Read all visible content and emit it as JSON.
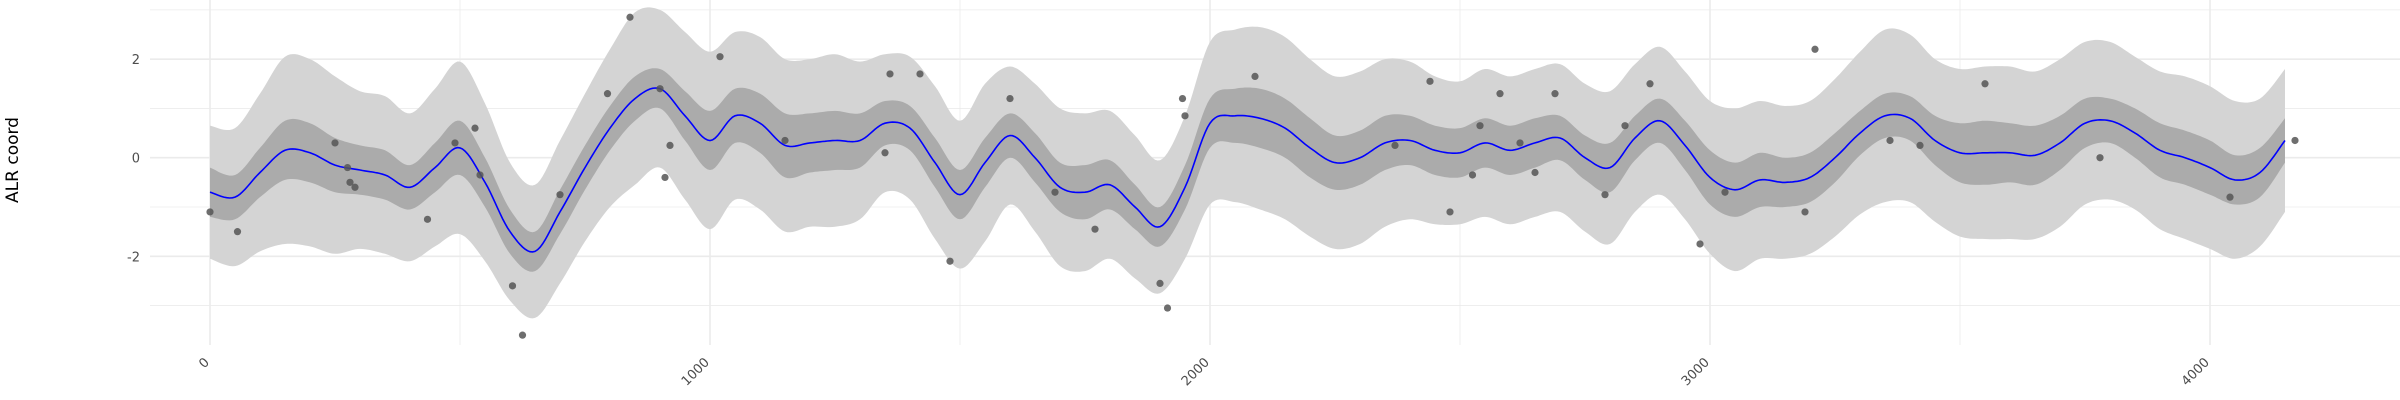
{
  "chart_data": {
    "type": "line",
    "title": "",
    "xlabel": "",
    "ylabel": "ALR coord",
    "xlim": [
      -120,
      4380
    ],
    "ylim": [
      -3.8,
      3.2
    ],
    "x_ticks": [
      0,
      1000,
      2000,
      3000,
      4000
    ],
    "x_tick_labels": [
      "0",
      "1000",
      "2000",
      "3000",
      "4000"
    ],
    "y_ticks": [
      -2,
      0,
      2
    ],
    "y_tick_labels": [
      "-2",
      "0",
      "2"
    ],
    "x_minor_ticks": [
      500,
      1500,
      2500,
      3500
    ],
    "y_minor_ticks": [
      -3,
      -1,
      1,
      3
    ],
    "grid": true,
    "legend": "none",
    "colors": {
      "mean_line": "#0000ff",
      "inner_band": "#ababab",
      "outer_band": "#d4d4d4",
      "points": "#555555",
      "grid": "#ebebeb"
    },
    "series": [
      {
        "kind": "mean",
        "x": [
          0,
          50,
          100,
          150,
          200,
          250,
          300,
          350,
          400,
          450,
          500,
          550,
          600,
          650,
          700,
          750,
          800,
          850,
          900,
          950,
          1000,
          1050,
          1100,
          1150,
          1200,
          1250,
          1300,
          1350,
          1400,
          1450,
          1500,
          1550,
          1600,
          1650,
          1700,
          1750,
          1800,
          1850,
          1900,
          1950,
          2000,
          2050,
          2100,
          2150,
          2200,
          2250,
          2300,
          2350,
          2400,
          2450,
          2500,
          2550,
          2600,
          2650,
          2700,
          2750,
          2800,
          2850,
          2900,
          2950,
          3000,
          3050,
          3100,
          3150,
          3200,
          3250,
          3300,
          3350,
          3400,
          3450,
          3500,
          3550,
          3600,
          3650,
          3700,
          3750,
          3800,
          3850,
          3900,
          3950,
          4000,
          4050,
          4100,
          4150
        ],
        "values": [
          -0.7,
          -0.8,
          -0.3,
          0.15,
          0.1,
          -0.15,
          -0.25,
          -0.35,
          -0.6,
          -0.2,
          0.2,
          -0.5,
          -1.5,
          -1.9,
          -1.1,
          -0.2,
          0.6,
          1.2,
          1.4,
          0.85,
          0.35,
          0.85,
          0.7,
          0.25,
          0.3,
          0.35,
          0.35,
          0.7,
          0.6,
          -0.1,
          -0.75,
          -0.1,
          0.45,
          0.0,
          -0.6,
          -0.7,
          -0.55,
          -1.0,
          -1.4,
          -0.6,
          0.7,
          0.85,
          0.8,
          0.6,
          0.2,
          -0.1,
          0.0,
          0.3,
          0.35,
          0.15,
          0.1,
          0.3,
          0.15,
          0.3,
          0.4,
          0.0,
          -0.2,
          0.4,
          0.75,
          0.25,
          -0.4,
          -0.65,
          -0.45,
          -0.5,
          -0.4,
          0.0,
          0.5,
          0.85,
          0.8,
          0.35,
          0.1,
          0.1,
          0.1,
          0.05,
          0.3,
          0.7,
          0.75,
          0.5,
          0.15,
          0.0,
          -0.2,
          -0.45,
          -0.3,
          0.35
        ],
        "inner_band_halfwidth": [
          0.5,
          0.45,
          0.5,
          0.6,
          0.6,
          0.55,
          0.5,
          0.5,
          0.45,
          0.5,
          0.55,
          0.5,
          0.45,
          0.4,
          0.45,
          0.45,
          0.45,
          0.45,
          0.4,
          0.5,
          0.6,
          0.55,
          0.6,
          0.65,
          0.6,
          0.6,
          0.55,
          0.45,
          0.45,
          0.5,
          0.5,
          0.5,
          0.45,
          0.5,
          0.5,
          0.55,
          0.5,
          0.45,
          0.4,
          0.45,
          0.5,
          0.55,
          0.6,
          0.6,
          0.6,
          0.55,
          0.55,
          0.55,
          0.5,
          0.5,
          0.5,
          0.5,
          0.5,
          0.5,
          0.45,
          0.45,
          0.5,
          0.45,
          0.45,
          0.5,
          0.55,
          0.55,
          0.55,
          0.5,
          0.5,
          0.5,
          0.45,
          0.45,
          0.45,
          0.5,
          0.6,
          0.65,
          0.6,
          0.6,
          0.55,
          0.5,
          0.45,
          0.5,
          0.55,
          0.55,
          0.55,
          0.5,
          0.5,
          0.45
        ],
        "outer_band_halfwidth": [
          1.35,
          1.4,
          1.6,
          1.9,
          1.9,
          1.8,
          1.6,
          1.6,
          1.5,
          1.6,
          1.75,
          1.6,
          1.4,
          1.35,
          1.45,
          1.5,
          1.6,
          1.75,
          1.6,
          1.7,
          1.8,
          1.7,
          1.75,
          1.75,
          1.7,
          1.75,
          1.6,
          1.4,
          1.45,
          1.55,
          1.5,
          1.6,
          1.4,
          1.5,
          1.6,
          1.6,
          1.5,
          1.45,
          1.35,
          1.45,
          1.65,
          1.75,
          1.85,
          1.85,
          1.8,
          1.75,
          1.75,
          1.7,
          1.6,
          1.5,
          1.45,
          1.5,
          1.5,
          1.5,
          1.5,
          1.5,
          1.55,
          1.5,
          1.5,
          1.5,
          1.55,
          1.65,
          1.6,
          1.55,
          1.55,
          1.6,
          1.65,
          1.75,
          1.7,
          1.65,
          1.7,
          1.75,
          1.75,
          1.7,
          1.7,
          1.65,
          1.6,
          1.55,
          1.6,
          1.65,
          1.65,
          1.6,
          1.5,
          1.45
        ]
      },
      {
        "kind": "points",
        "x": [
          0,
          55,
          250,
          275,
          280,
          290,
          435,
          490,
          530,
          540,
          605,
          625,
          700,
          795,
          840,
          900,
          910,
          920,
          1020,
          1150,
          1350,
          1360,
          1420,
          1480,
          1600,
          1690,
          1770,
          1900,
          1915,
          1945,
          1950,
          2090,
          2370,
          2440,
          2480,
          2525,
          2540,
          2580,
          2620,
          2650,
          2690,
          2790,
          2830,
          2880,
          2980,
          3030,
          3190,
          3210,
          3360,
          3420,
          3550,
          3780,
          4040,
          4170
        ],
        "values": [
          -1.1,
          -1.5,
          0.3,
          -0.2,
          -0.5,
          -0.6,
          -1.25,
          0.3,
          0.6,
          -0.35,
          -2.6,
          -3.6,
          -0.75,
          1.3,
          2.85,
          1.4,
          -0.4,
          0.25,
          2.05,
          0.35,
          0.1,
          1.7,
          1.7,
          -2.1,
          1.2,
          -0.7,
          -1.45,
          -2.55,
          -3.05,
          1.2,
          0.85,
          1.65,
          0.25,
          1.55,
          -1.1,
          -0.35,
          0.65,
          1.3,
          0.3,
          -0.3,
          1.3,
          -0.75,
          0.65,
          1.5,
          -1.75,
          -0.7,
          -1.1,
          2.2,
          0.35,
          0.25,
          1.5,
          0.0,
          -0.8,
          0.35
        ]
      }
    ]
  }
}
